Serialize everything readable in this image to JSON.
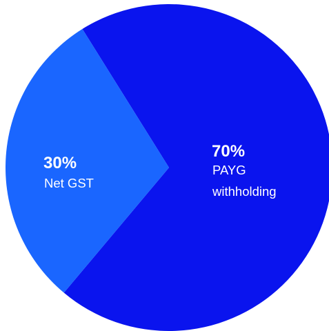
{
  "chart_data": {
    "type": "pie",
    "slices": [
      {
        "label_lines": [
          "PAYG",
          "withholding"
        ],
        "value": 70,
        "value_text": "70%",
        "color": "#0a14ee"
      },
      {
        "label_lines": [
          "Net GST"
        ],
        "value": 30,
        "value_text": "30%",
        "color": "#1a66ff"
      }
    ]
  }
}
